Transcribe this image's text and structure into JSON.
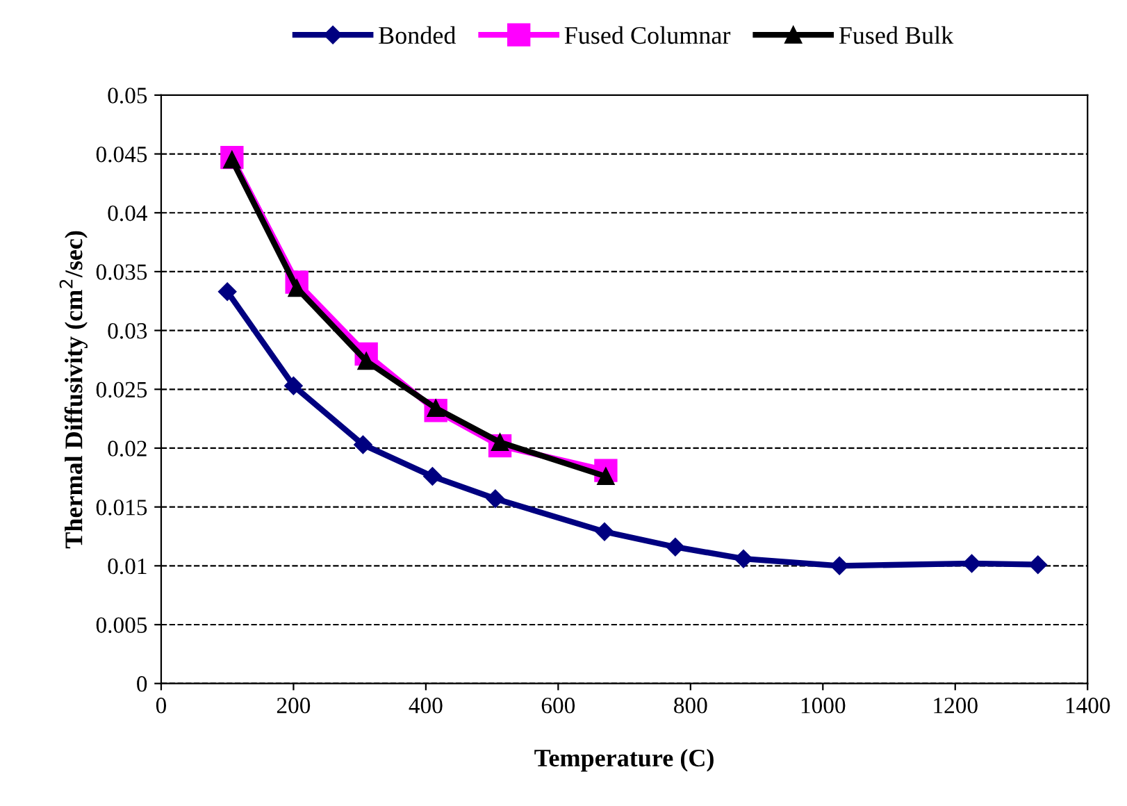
{
  "chart_data": {
    "type": "line",
    "xlabel": "Temperature (C)",
    "ylabel": "Thermal Diffusivity (cm$^{2}$/sec)",
    "xlim": [
      0,
      1400
    ],
    "xticks": [
      0,
      200,
      400,
      600,
      800,
      1000,
      1200,
      1400
    ],
    "ylim": [
      0,
      0.05
    ],
    "yticks": [
      0,
      0.005,
      0.01,
      0.015,
      0.02,
      0.025,
      0.03,
      0.035,
      0.04,
      0.045,
      0.05
    ],
    "grid": "y",
    "legend": "top",
    "line_style": "solid",
    "series": [
      {
        "name": "Bonded",
        "color": "#000080",
        "marker": "diamond",
        "x": [
          100,
          200,
          305,
          410,
          505,
          670,
          777,
          880,
          1025,
          1225,
          1325
        ],
        "values": [
          0.0333,
          0.0253,
          0.0203,
          0.0176,
          0.0157,
          0.0129,
          0.0116,
          0.0106,
          0.01,
          0.0102,
          0.0101
        ]
      },
      {
        "name": "Fused Columnar",
        "color": "#ff00ff",
        "marker": "square",
        "x": [
          107,
          205,
          310,
          415,
          512,
          672
        ],
        "values": [
          0.0447,
          0.0341,
          0.028,
          0.0232,
          0.0202,
          0.0181
        ]
      },
      {
        "name": "Fused Bulk",
        "color": "#000000",
        "marker": "triangle",
        "x": [
          107,
          205,
          310,
          415,
          512,
          672
        ],
        "values": [
          0.0445,
          0.0336,
          0.0274,
          0.0234,
          0.0205,
          0.0176
        ]
      }
    ]
  }
}
